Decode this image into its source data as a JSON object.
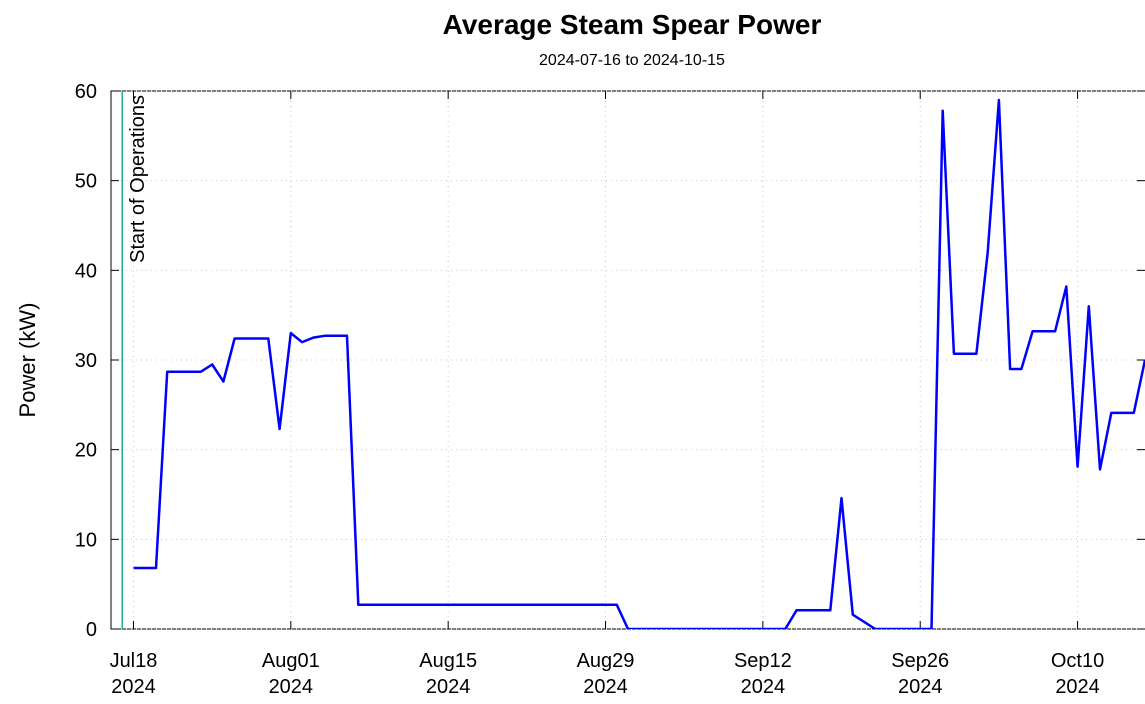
{
  "chart_data": {
    "type": "line",
    "title": "Average Steam Spear Power",
    "subtitle": "2024-07-16 to 2024-10-15",
    "y_label": "Power (kW)",
    "x": [
      "2024-07-18",
      "2024-07-20",
      "2024-07-21",
      "2024-07-24",
      "2024-07-25",
      "2024-07-26",
      "2024-07-27",
      "2024-07-30",
      "2024-07-31",
      "2024-08-01",
      "2024-08-02",
      "2024-08-03",
      "2024-08-04",
      "2024-08-06",
      "2024-08-07",
      "2024-08-30",
      "2024-08-31",
      "2024-09-14",
      "2024-09-15",
      "2024-09-18",
      "2024-09-19",
      "2024-09-20",
      "2024-09-22",
      "2024-09-27",
      "2024-09-28",
      "2024-09-29",
      "2024-10-01",
      "2024-10-02",
      "2024-10-03",
      "2024-10-04",
      "2024-10-05",
      "2024-10-06",
      "2024-10-08",
      "2024-10-09",
      "2024-10-10",
      "2024-10-11",
      "2024-10-12",
      "2024-10-13",
      "2024-10-15",
      "2024-10-16"
    ],
    "values": [
      6.8,
      6.8,
      28.7,
      28.7,
      29.5,
      27.6,
      32.4,
      32.4,
      22.3,
      33.0,
      32.0,
      32.5,
      32.7,
      32.7,
      2.7,
      2.7,
      0,
      0,
      2.1,
      2.1,
      14.6,
      1.6,
      0,
      0,
      57.8,
      30.7,
      30.7,
      42,
      59,
      29,
      29,
      33.2,
      33.2,
      38.2,
      18.1,
      36,
      17.8,
      24.1,
      24.1,
      30
    ],
    "color": "#0000ff",
    "xlim": [
      "2024-07-16",
      "2024-10-16"
    ],
    "xticks": [
      {
        "value": "2024-07-18",
        "label": "Jul18\n2024"
      },
      {
        "value": "2024-08-01",
        "label": "Aug01\n2024"
      },
      {
        "value": "2024-08-15",
        "label": "Aug15\n2024"
      },
      {
        "value": "2024-08-29",
        "label": "Aug29\n2024"
      },
      {
        "value": "2024-09-12",
        "label": "Sep12\n2024"
      },
      {
        "value": "2024-09-26",
        "label": "Sep26\n2024"
      },
      {
        "value": "2024-10-10",
        "label": "Oct10\n2024"
      }
    ],
    "ylim": [
      0,
      60
    ],
    "yticks": [
      0,
      10,
      20,
      30,
      40,
      50,
      60
    ],
    "grid": true,
    "annotations": [
      {
        "x": "2024-07-17",
        "text": "Start of Operations",
        "color": "#20b08e"
      }
    ]
  }
}
